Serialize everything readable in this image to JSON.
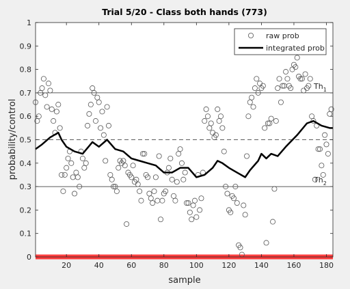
{
  "chart_data": {
    "type": "scatter",
    "title": "Trial 5/20 - Class both hands (773)",
    "x_label": "sample",
    "y_label": "probability/control",
    "xlim": [
      1,
      184
    ],
    "ylim": [
      0,
      1
    ],
    "xticks": [
      20,
      40,
      60,
      80,
      100,
      120,
      140,
      160,
      180
    ],
    "yticks": [
      0,
      0.1,
      0.2,
      0.3,
      0.4,
      0.5,
      0.6,
      0.7,
      0.8,
      0.9,
      1
    ],
    "legend": "top-right",
    "reference_lines": [
      {
        "value": 0.7,
        "label": "Th",
        "subscript": "1",
        "color": "#262626",
        "style": "solid"
      },
      {
        "value": 0.5,
        "color": "#262626",
        "style": "dashed"
      },
      {
        "value": 0.3,
        "label": "Th",
        "subscript": "2",
        "color": "#262626",
        "style": "solid"
      },
      {
        "value": 0,
        "color": "#ff0000",
        "style": "thick"
      }
    ],
    "series": [
      {
        "name": "raw prob",
        "type": "scatter",
        "color": "#555555",
        "x": [
          1,
          2,
          3,
          4,
          5,
          6,
          7,
          8,
          9,
          10,
          11,
          12,
          13,
          14,
          15,
          16,
          17,
          18,
          19,
          20,
          21,
          22,
          23,
          24,
          25,
          26,
          27,
          28,
          29,
          30,
          31,
          32,
          33,
          34,
          35,
          36,
          37,
          38,
          39,
          40,
          41,
          42,
          43,
          44,
          45,
          46,
          47,
          48,
          49,
          50,
          51,
          52,
          53,
          54,
          55,
          56,
          57,
          58,
          59,
          60,
          61,
          62,
          63,
          64,
          65,
          66,
          67,
          68,
          69,
          70,
          71,
          72,
          73,
          74,
          75,
          76,
          77,
          78,
          79,
          80,
          81,
          82,
          83,
          84,
          85,
          86,
          87,
          88,
          89,
          90,
          91,
          92,
          93,
          94,
          95,
          96,
          97,
          98,
          99,
          100,
          101,
          102,
          103,
          104,
          105,
          106,
          107,
          108,
          109,
          110,
          111,
          112,
          113,
          114,
          115,
          116,
          117,
          118,
          119,
          120,
          121,
          122,
          123,
          124,
          125,
          126,
          127,
          128,
          129,
          130,
          131,
          132,
          133,
          134,
          135,
          136,
          137,
          138,
          139,
          140,
          141,
          142,
          143,
          144,
          145,
          146,
          147,
          148,
          149,
          150,
          151,
          152,
          153,
          154,
          155,
          156,
          157,
          158,
          159,
          160,
          161,
          162,
          163,
          164,
          165,
          166,
          167,
          168,
          169,
          170,
          171,
          172,
          173,
          174,
          175,
          176,
          177,
          178,
          179,
          180,
          181,
          182,
          183
        ],
        "values": [
          0.66,
          0.58,
          0.6,
          0.7,
          0.72,
          0.76,
          0.69,
          0.64,
          0.74,
          0.71,
          0.63,
          0.58,
          0.53,
          0.62,
          0.65,
          0.55,
          0.35,
          0.28,
          0.35,
          0.38,
          0.42,
          0.45,
          0.4,
          0.34,
          0.27,
          0.36,
          0.34,
          0.3,
          0.45,
          0.42,
          0.38,
          0.4,
          0.56,
          0.61,
          0.65,
          0.72,
          0.7,
          0.58,
          0.68,
          0.66,
          0.55,
          0.62,
          0.52,
          0.41,
          0.64,
          0.56,
          0.35,
          0.33,
          0.3,
          0.3,
          0.28,
          0.38,
          0.41,
          0.4,
          0.41,
          0.39,
          0.14,
          0.36,
          0.35,
          0.34,
          0.39,
          0.32,
          0.33,
          0.31,
          0.28,
          0.24,
          0.44,
          0.44,
          0.35,
          0.34,
          0.27,
          0.25,
          0.23,
          0.28,
          0.34,
          0.24,
          0.43,
          0.16,
          0.24,
          0.27,
          0.28,
          0.36,
          0.38,
          0.42,
          0.33,
          0.26,
          0.24,
          0.32,
          0.44,
          0.46,
          0.4,
          0.33,
          0.36,
          0.23,
          0.23,
          0.19,
          0.16,
          0.22,
          0.24,
          0.17,
          0.35,
          0.2,
          0.25,
          0.36,
          0.58,
          0.63,
          0.6,
          0.55,
          0.57,
          0.53,
          0.51,
          0.52,
          0.63,
          0.58,
          0.6,
          0.55,
          0.45,
          0.3,
          0.27,
          0.2,
          0.19,
          0.26,
          0.25,
          0.3,
          0.23,
          0.05,
          0.04,
          0.01,
          0.22,
          0.18,
          0.43,
          0.6,
          0.66,
          0.68,
          0.64,
          0.72,
          0.76,
          0.7,
          0.74,
          0.72,
          0.73,
          0.55,
          0.06,
          0.57,
          0.57,
          0.59,
          0.15,
          0.29,
          0.58,
          0.72,
          0.76,
          0.66,
          0.73,
          0.73,
          0.79,
          0.76,
          0.73,
          0.72,
          0.8,
          0.82,
          0.81,
          0.85,
          0.77,
          0.76,
          0.76,
          0.71,
          0.78,
          0.72,
          0.73,
          0.76,
          0.6,
          0.58,
          0.33,
          0.56,
          0.46,
          0.46,
          0.39,
          0.35,
          0.52,
          0.48,
          0.44,
          0.61,
          0.63
        ]
      },
      {
        "name": "integrated prob",
        "type": "line",
        "color": "#000000",
        "x": [
          1,
          5,
          10,
          15,
          17,
          20,
          25,
          30,
          36,
          40,
          45,
          50,
          55,
          60,
          65,
          70,
          75,
          80,
          85,
          90,
          95,
          100,
          105,
          110,
          113,
          116,
          120,
          125,
          130,
          133,
          138,
          140,
          143,
          146,
          150,
          155,
          162,
          168,
          172,
          177,
          182,
          184
        ],
        "values": [
          0.46,
          0.48,
          0.51,
          0.53,
          0.5,
          0.47,
          0.45,
          0.44,
          0.49,
          0.47,
          0.5,
          0.46,
          0.45,
          0.42,
          0.41,
          0.4,
          0.39,
          0.36,
          0.36,
          0.38,
          0.38,
          0.34,
          0.35,
          0.38,
          0.41,
          0.4,
          0.38,
          0.36,
          0.34,
          0.37,
          0.41,
          0.44,
          0.42,
          0.44,
          0.43,
          0.47,
          0.52,
          0.57,
          0.58,
          0.56,
          0.55,
          0.55
        ]
      }
    ]
  }
}
